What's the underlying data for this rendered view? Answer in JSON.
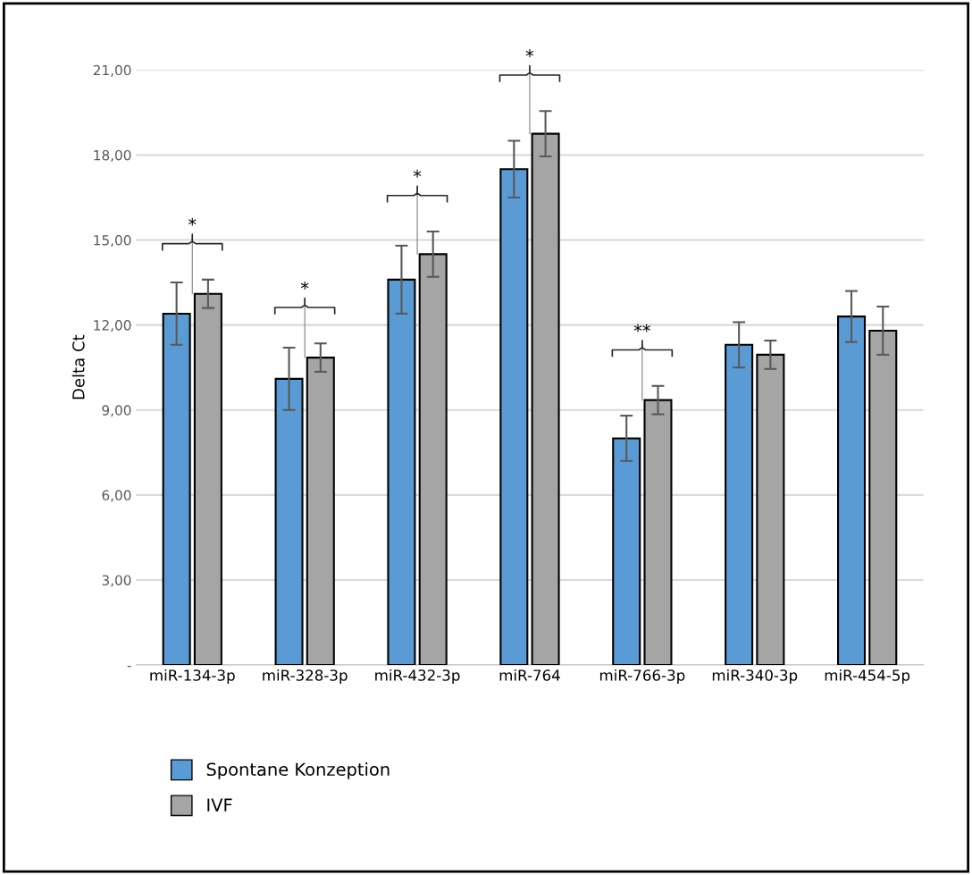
{
  "chart_data": {
    "type": "bar",
    "ylabel": "Delta Ct",
    "categories": [
      "miR-134-3p",
      "miR-328-3p",
      "miR-432-3p",
      "miR-764",
      "miR-766-3p",
      "miR-340-3p",
      "miR-454-5p"
    ],
    "series": [
      {
        "name": "Spontane Konzeption",
        "color": "#5b9bd5",
        "values": [
          12.4,
          10.1,
          13.6,
          17.5,
          8.0,
          11.3,
          12.3
        ],
        "errors": [
          1.1,
          1.1,
          1.2,
          1.0,
          0.8,
          0.8,
          0.9
        ]
      },
      {
        "name": "IVF",
        "color": "#a5a5a5",
        "values": [
          13.1,
          10.85,
          14.5,
          18.75,
          9.35,
          10.95,
          11.8
        ],
        "errors": [
          0.5,
          0.5,
          0.8,
          0.8,
          0.5,
          0.5,
          0.85
        ]
      }
    ],
    "ylim": [
      0,
      21
    ],
    "yticks": [
      {
        "value": 0,
        "label": "-"
      },
      {
        "value": 3,
        "label": "3,00"
      },
      {
        "value": 6,
        "label": "6,00"
      },
      {
        "value": 9,
        "label": "9,00"
      },
      {
        "value": 12,
        "label": "12,00"
      },
      {
        "value": 15,
        "label": "15,00"
      },
      {
        "value": 18,
        "label": "18,00"
      },
      {
        "value": 21,
        "label": "21,00"
      }
    ],
    "grid": "y",
    "legend": "bottom left",
    "annotations": [
      {
        "text": "*",
        "x": "miR-134-3p",
        "y": 13.1
      },
      {
        "text": "*",
        "x": "miR-328-3p",
        "y": 10.85
      },
      {
        "text": "*",
        "x": "miR-432-3p",
        "y": 14.5
      },
      {
        "text": "*",
        "x": "miR-764",
        "y": 18.75
      },
      {
        "text": "**",
        "x": "miR-766-3p",
        "y": 9.35
      }
    ]
  }
}
